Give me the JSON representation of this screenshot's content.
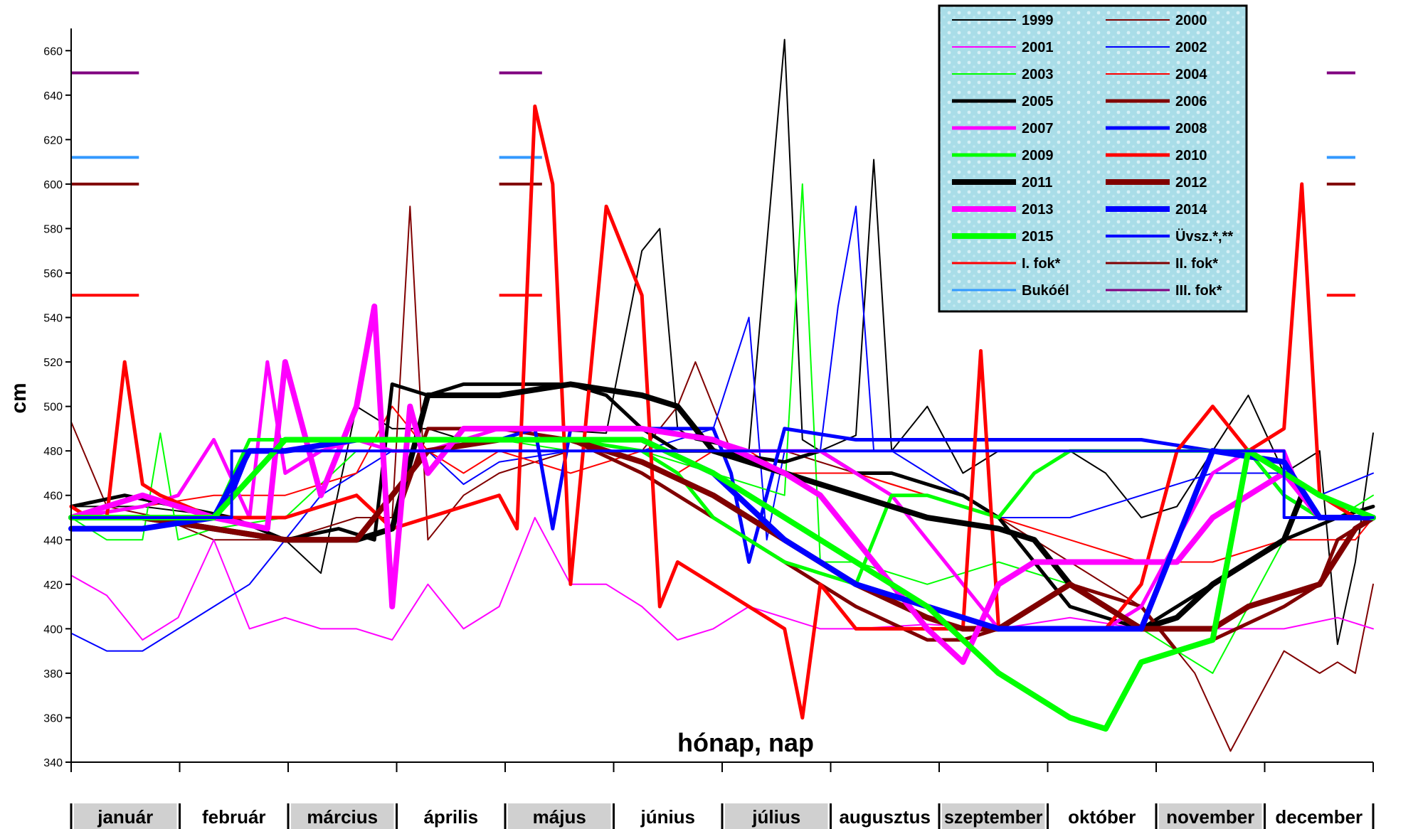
{
  "chart_data": {
    "type": "line",
    "title": "",
    "xlabel": "hónap, nap",
    "ylabel": "cm",
    "ylim": [
      340,
      670
    ],
    "yticks": [
      340,
      360,
      380,
      400,
      420,
      440,
      460,
      480,
      500,
      520,
      540,
      560,
      580,
      600,
      620,
      640,
      660
    ],
    "xlim": [
      0,
      365
    ],
    "months": [
      "január",
      "február",
      "március",
      "április",
      "május",
      "június",
      "július",
      "augusztus",
      "szeptember",
      "október",
      "november",
      "december"
    ],
    "month_shaded": [
      true,
      false,
      true,
      false,
      true,
      false,
      true,
      false,
      true,
      false,
      true,
      false
    ],
    "legend_position": "top-right",
    "grid": false,
    "series": [
      {
        "name": "1999",
        "color": "#000000",
        "width": 2,
        "x": [
          0,
          20,
          45,
          60,
          70,
          80,
          90,
          100,
          110,
          120,
          130,
          150,
          160,
          165,
          170,
          175,
          190,
          200,
          205,
          210,
          220,
          225,
          230,
          240,
          250,
          260,
          280,
          290,
          300,
          310,
          320,
          330,
          340,
          350,
          355,
          360,
          365
        ],
        "y": [
          455,
          455,
          450,
          440,
          425,
          500,
          490,
          490,
          485,
          485,
          490,
          488,
          570,
          580,
          490,
          485,
          480,
          665,
          485,
          480,
          487,
          611,
          480,
          500,
          470,
          480,
          480,
          470,
          450,
          455,
          480,
          505,
          470,
          480,
          393,
          430,
          488
        ]
      },
      {
        "name": "2000",
        "color": "#800000",
        "width": 2,
        "x": [
          0,
          10,
          25,
          40,
          60,
          80,
          90,
          95,
          100,
          110,
          120,
          140,
          150,
          160,
          170,
          175,
          185,
          200,
          220,
          240,
          260,
          280,
          300,
          315,
          325,
          340,
          350,
          355,
          360,
          365
        ],
        "y": [
          493,
          455,
          450,
          440,
          440,
          450,
          450,
          590,
          440,
          460,
          470,
          480,
          480,
          480,
          500,
          520,
          480,
          480,
          470,
          460,
          450,
          430,
          410,
          380,
          345,
          390,
          380,
          385,
          380,
          420
        ]
      },
      {
        "name": "2001",
        "color": "#ff00ff",
        "width": 2,
        "x": [
          0,
          10,
          20,
          30,
          40,
          50,
          60,
          70,
          80,
          90,
          100,
          110,
          120,
          130,
          140,
          150,
          160,
          170,
          180,
          190,
          200,
          210,
          220,
          240,
          260,
          280,
          300,
          320,
          340,
          355,
          365
        ],
        "y": [
          424,
          415,
          395,
          405,
          440,
          400,
          405,
          400,
          400,
          395,
          420,
          400,
          410,
          450,
          420,
          420,
          410,
          395,
          400,
          410,
          405,
          400,
          400,
          402,
          400,
          405,
          400,
          400,
          400,
          405,
          400
        ]
      },
      {
        "name": "2002",
        "color": "#0000ff",
        "width": 2,
        "x": [
          0,
          10,
          20,
          30,
          40,
          50,
          60,
          70,
          80,
          90,
          100,
          110,
          120,
          140,
          160,
          180,
          190,
          195,
          200,
          210,
          215,
          220,
          225,
          230,
          240,
          260,
          280,
          300,
          320,
          340,
          350,
          365
        ],
        "y": [
          398,
          390,
          390,
          400,
          410,
          420,
          440,
          460,
          470,
          480,
          480,
          465,
          475,
          480,
          480,
          490,
          540,
          440,
          480,
          480,
          545,
          590,
          480,
          480,
          470,
          450,
          450,
          460,
          470,
          470,
          460,
          470
        ]
      },
      {
        "name": "2003",
        "color": "#00ff00",
        "width": 2,
        "x": [
          0,
          10,
          20,
          25,
          30,
          40,
          60,
          80,
          100,
          110,
          120,
          140,
          160,
          180,
          200,
          205,
          210,
          220,
          240,
          260,
          280,
          300,
          320,
          340,
          355,
          365
        ],
        "y": [
          450,
          440,
          440,
          488,
          440,
          445,
          450,
          480,
          480,
          485,
          485,
          480,
          480,
          470,
          460,
          600,
          430,
          430,
          420,
          430,
          420,
          400,
          380,
          440,
          450,
          460
        ]
      },
      {
        "name": "2004",
        "color": "#ff0000",
        "width": 2,
        "x": [
          0,
          20,
          40,
          60,
          80,
          90,
          100,
          110,
          120,
          140,
          160,
          170,
          180,
          190,
          200,
          210,
          220,
          240,
          260,
          280,
          300,
          320,
          340,
          360,
          365
        ],
        "y": [
          450,
          455,
          460,
          460,
          470,
          500,
          480,
          470,
          480,
          470,
          480,
          470,
          480,
          480,
          470,
          470,
          470,
          460,
          450,
          440,
          430,
          430,
          440,
          440,
          450
        ]
      },
      {
        "name": "2005",
        "color": "#000000",
        "width": 5,
        "x": [
          0,
          15,
          30,
          45,
          60,
          75,
          85,
          90,
          100,
          110,
          120,
          140,
          150,
          160,
          170,
          180,
          200,
          210,
          220,
          230,
          240,
          250,
          260,
          270,
          280,
          290,
          300,
          310,
          320,
          340,
          355,
          365
        ],
        "y": [
          455,
          460,
          455,
          450,
          440,
          445,
          440,
          510,
          505,
          510,
          510,
          510,
          505,
          490,
          480,
          480,
          475,
          480,
          470,
          470,
          465,
          460,
          450,
          430,
          410,
          405,
          400,
          410,
          420,
          440,
          450,
          455
        ]
      },
      {
        "name": "2006",
        "color": "#800000",
        "width": 5,
        "x": [
          0,
          20,
          40,
          60,
          80,
          90,
          100,
          120,
          140,
          160,
          180,
          190,
          200,
          220,
          240,
          250,
          260,
          270,
          280,
          300,
          310,
          320,
          340,
          350,
          355,
          365
        ],
        "y": [
          450,
          450,
          445,
          440,
          440,
          445,
          490,
          490,
          485,
          470,
          450,
          440,
          430,
          410,
          395,
          395,
          400,
          410,
          420,
          410,
          390,
          395,
          410,
          420,
          440,
          450
        ]
      },
      {
        "name": "2007",
        "color": "#ff00ff",
        "width": 5,
        "x": [
          0,
          20,
          30,
          40,
          50,
          55,
          60,
          70,
          80,
          90,
          100,
          120,
          140,
          160,
          180,
          190,
          200,
          210,
          220,
          230,
          240,
          250,
          260,
          280,
          290,
          300,
          310,
          320,
          330,
          340,
          345,
          350,
          365
        ],
        "y": [
          450,
          455,
          460,
          485,
          450,
          520,
          470,
          480,
          485,
          480,
          480,
          490,
          490,
          490,
          485,
          480,
          480,
          480,
          470,
          460,
          440,
          420,
          400,
          400,
          400,
          410,
          440,
          470,
          480,
          480,
          460,
          450,
          450
        ]
      },
      {
        "name": "2008",
        "color": "#0000ff",
        "width": 5,
        "x": [
          0,
          20,
          40,
          45,
          50,
          60,
          80,
          100,
          120,
          130,
          135,
          140,
          160,
          180,
          185,
          190,
          200,
          220,
          240,
          260,
          280,
          300,
          320,
          330,
          340,
          350,
          365
        ],
        "y": [
          450,
          450,
          450,
          460,
          480,
          480,
          485,
          485,
          485,
          490,
          445,
          490,
          490,
          490,
          470,
          430,
          490,
          485,
          485,
          485,
          485,
          485,
          480,
          480,
          460,
          450,
          450
        ]
      },
      {
        "name": "2009",
        "color": "#00ff00",
        "width": 5,
        "x": [
          0,
          20,
          40,
          50,
          60,
          80,
          100,
          120,
          140,
          160,
          170,
          180,
          190,
          200,
          210,
          220,
          225,
          230,
          240,
          260,
          270,
          280,
          290,
          300,
          310,
          320,
          330,
          340,
          350,
          365
        ],
        "y": [
          450,
          450,
          450,
          485,
          485,
          485,
          485,
          485,
          485,
          480,
          470,
          450,
          440,
          430,
          425,
          420,
          440,
          460,
          460,
          450,
          470,
          480,
          480,
          480,
          480,
          480,
          480,
          460,
          450,
          450
        ]
      },
      {
        "name": "2010",
        "color": "#ff0000",
        "width": 5,
        "x": [
          0,
          5,
          10,
          15,
          20,
          25,
          40,
          60,
          80,
          90,
          100,
          110,
          120,
          125,
          130,
          135,
          140,
          150,
          160,
          165,
          170,
          180,
          190,
          200,
          205,
          210,
          220,
          240,
          250,
          255,
          260,
          280,
          290,
          300,
          310,
          320,
          330,
          340,
          345,
          350,
          360,
          365
        ],
        "y": [
          455,
          450,
          450,
          520,
          465,
          460,
          450,
          450,
          460,
          445,
          450,
          455,
          460,
          445,
          635,
          600,
          420,
          590,
          550,
          410,
          430,
          420,
          410,
          400,
          360,
          420,
          400,
          400,
          400,
          525,
          400,
          400,
          400,
          420,
          480,
          500,
          480,
          490,
          600,
          460,
          450,
          450
        ]
      },
      {
        "name": "2011",
        "color": "#000000",
        "width": 8,
        "x": [
          0,
          20,
          40,
          60,
          80,
          90,
          100,
          120,
          140,
          160,
          170,
          180,
          200,
          220,
          240,
          260,
          270,
          280,
          290,
          300,
          310,
          320,
          330,
          340,
          345,
          350,
          365
        ],
        "y": [
          450,
          450,
          445,
          440,
          440,
          445,
          505,
          505,
          510,
          505,
          500,
          480,
          470,
          460,
          450,
          445,
          440,
          420,
          410,
          400,
          405,
          420,
          430,
          440,
          460,
          450,
          450
        ]
      },
      {
        "name": "2012",
        "color": "#800000",
        "width": 8,
        "x": [
          0,
          20,
          40,
          60,
          80,
          100,
          120,
          140,
          160,
          180,
          200,
          220,
          240,
          250,
          260,
          270,
          280,
          290,
          300,
          310,
          320,
          330,
          340,
          350,
          360,
          365
        ],
        "y": [
          450,
          450,
          445,
          440,
          440,
          480,
          485,
          485,
          475,
          460,
          440,
          420,
          405,
          400,
          400,
          410,
          420,
          410,
          400,
          400,
          400,
          410,
          415,
          420,
          445,
          450
        ]
      },
      {
        "name": "2013",
        "color": "#ff00ff",
        "width": 8,
        "x": [
          0,
          20,
          40,
          55,
          60,
          70,
          80,
          85,
          90,
          95,
          100,
          110,
          120,
          140,
          160,
          180,
          200,
          210,
          220,
          230,
          240,
          250,
          260,
          270,
          280,
          290,
          300,
          310,
          320,
          330,
          340,
          350,
          365
        ],
        "y": [
          450,
          460,
          450,
          445,
          520,
          460,
          500,
          545,
          410,
          500,
          470,
          490,
          490,
          490,
          490,
          485,
          470,
          460,
          440,
          420,
          400,
          385,
          420,
          430,
          430,
          430,
          430,
          430,
          450,
          460,
          470,
          450,
          450
        ]
      },
      {
        "name": "2014",
        "color": "#0000ff",
        "width": 8,
        "x": [
          0,
          20,
          40,
          50,
          60,
          80,
          100,
          120,
          140,
          160,
          180,
          190,
          200,
          210,
          220,
          240,
          260,
          280,
          300,
          320,
          340,
          350,
          365
        ],
        "y": [
          445,
          445,
          450,
          480,
          480,
          485,
          485,
          485,
          485,
          485,
          470,
          455,
          440,
          430,
          420,
          410,
          400,
          400,
          400,
          480,
          475,
          450,
          450
        ]
      },
      {
        "name": "2015",
        "color": "#00ff00",
        "width": 8,
        "x": [
          0,
          20,
          40,
          60,
          80,
          100,
          120,
          140,
          160,
          180,
          200,
          220,
          240,
          250,
          260,
          270,
          280,
          290,
          300,
          310,
          320,
          330,
          340,
          350,
          365
        ],
        "y": [
          450,
          450,
          450,
          485,
          485,
          485,
          485,
          485,
          485,
          470,
          450,
          430,
          410,
          395,
          380,
          370,
          360,
          355,
          385,
          390,
          395,
          480,
          470,
          460,
          450
        ]
      },
      {
        "name": "Üvsz.*,**",
        "color": "#0000ff",
        "width": 4,
        "x": [
          0,
          45,
          45,
          60,
          340,
          340,
          365
        ],
        "y": [
          450,
          450,
          480,
          480,
          480,
          450,
          450
        ]
      },
      {
        "name": "I. fok*",
        "color": "#ff0000",
        "width": 3,
        "x": [],
        "y": [],
        "level": 550
      },
      {
        "name": "II. fok*",
        "color": "#800000",
        "width": 3,
        "x": [],
        "y": [],
        "level": 600
      },
      {
        "name": "Bukóél",
        "color": "#3399ff",
        "width": 3,
        "x": [],
        "y": [],
        "level": 612
      },
      {
        "name": "III. fok*",
        "color": "#800080",
        "width": 3,
        "x": [],
        "y": [],
        "level": 650
      }
    ],
    "threshold_x_segments": [
      [
        0,
        19
      ],
      [
        120,
        132
      ],
      [
        352,
        360
      ]
    ]
  }
}
